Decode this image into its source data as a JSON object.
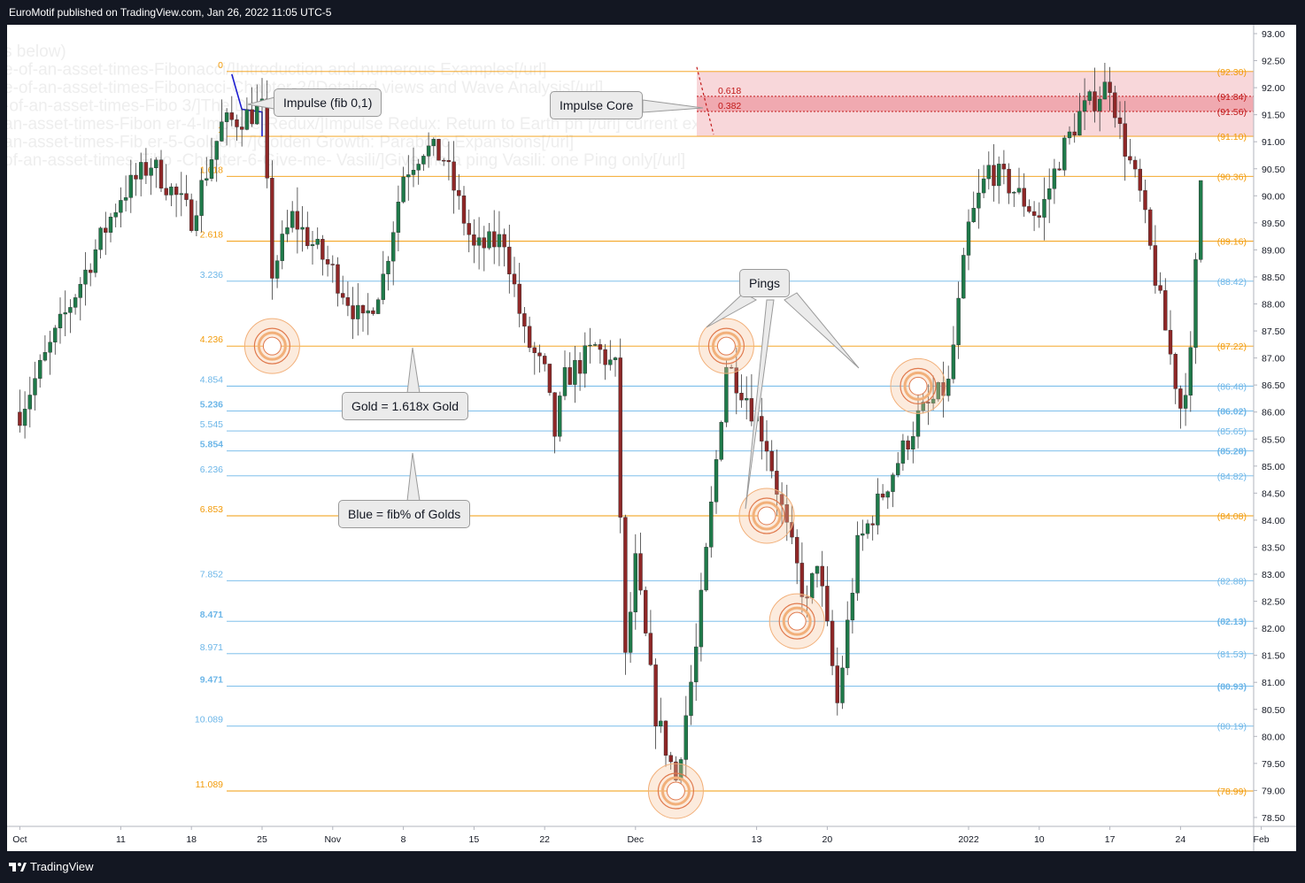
{
  "header": {
    "published": "EuroMotif published on TradingView.com, Jan 26, 2022 11:05 UTC-5"
  },
  "footer": {
    "brand": "TradingView"
  },
  "colors": {
    "gold": "#f29b0a",
    "blue": "#6cb6e8",
    "up": "#1f7a4a",
    "down": "#8f2727",
    "zone": "#f8d7da",
    "zone_dark": "#f0a9b0",
    "red": "#c21a1a"
  },
  "watermark": [
    "s below)",
    "e-of-an-asset-times-Fibonacci/]Introduction and numerous Examples[/url]",
    "e-of-an-asset-times-Fibonacci-Chapter-2/]Detailed views and Wave Analysis[/url]",
    "-of-an-asset-times-Fibo 3/]The Dreaded 9.8",
    "an-asset-times-Fibon er-4-Impulse-Redux/]Impulse Redux: Return to Earth ph [/url] current example",
    "an-asset-times-Fib er-5-Golden-  /]Golden Growth: Parabolic Expansions[/url]",
    "of-an-asset-times-Fibo -Chapter-6-Give-me-  Vasili/]Give me a ping Vasili: one Ping only[/url]"
  ],
  "chart_data": {
    "type": "candlestick",
    "title": "",
    "xlabel": "",
    "ylabel": "",
    "ylim": [
      78.2,
      93.3
    ],
    "y_ticks": [
      "93.00",
      "92.50",
      "92.00",
      "91.50",
      "91.00",
      "90.50",
      "90.00",
      "89.50",
      "89.00",
      "88.50",
      "88.00",
      "87.50",
      "87.00",
      "86.50",
      "86.00",
      "85.50",
      "85.00",
      "84.50",
      "84.00",
      "83.50",
      "83.00",
      "82.50",
      "82.00",
      "81.50",
      "81.00",
      "80.50",
      "80.00",
      "79.50",
      "79.00",
      "78.50"
    ],
    "x_ticks": [
      {
        "label": "Oct",
        "date": "2021-10-01"
      },
      {
        "label": "11",
        "date": "2021-10-11"
      },
      {
        "label": "18",
        "date": "2021-10-18"
      },
      {
        "label": "25",
        "date": "2021-10-25"
      },
      {
        "label": "Nov",
        "date": "2021-11-01"
      },
      {
        "label": "8",
        "date": "2021-11-08"
      },
      {
        "label": "15",
        "date": "2021-11-15"
      },
      {
        "label": "22",
        "date": "2021-11-22"
      },
      {
        "label": "Dec",
        "date": "2021-12-01"
      },
      {
        "label": "13",
        "date": "2021-12-13"
      },
      {
        "label": "20",
        "date": "2021-12-20"
      },
      {
        "label": "2022",
        "date": "2022-01-03"
      },
      {
        "label": "10",
        "date": "2022-01-10"
      },
      {
        "label": "17",
        "date": "2022-01-17"
      },
      {
        "label": "24",
        "date": "2022-01-24"
      },
      {
        "label": "Feb",
        "date": "2022-02-01"
      }
    ],
    "anchors": [
      {
        "date": "2021-10-01",
        "close": 86.0
      },
      {
        "date": "2021-10-07",
        "close": 88.4
      },
      {
        "date": "2021-10-11",
        "close": 90.0
      },
      {
        "date": "2021-10-14",
        "close": 90.6
      },
      {
        "date": "2021-10-18",
        "close": 89.6
      },
      {
        "date": "2021-10-21",
        "close": 91.3
      },
      {
        "date": "2021-10-25",
        "close": 91.6
      },
      {
        "date": "2021-10-26",
        "close": 88.6
      },
      {
        "date": "2021-10-28",
        "close": 89.6
      },
      {
        "date": "2021-11-01",
        "close": 88.6
      },
      {
        "date": "2021-11-04",
        "close": 87.6
      },
      {
        "date": "2021-11-06",
        "close": 88.5
      },
      {
        "date": "2021-11-08",
        "close": 90.4
      },
      {
        "date": "2021-11-10",
        "close": 90.9
      },
      {
        "date": "2021-11-12",
        "close": 90.7
      },
      {
        "date": "2021-11-15",
        "close": 89.0
      },
      {
        "date": "2021-11-18",
        "close": 89.2
      },
      {
        "date": "2021-11-20",
        "close": 87.4
      },
      {
        "date": "2021-11-22",
        "close": 86.7
      },
      {
        "date": "2021-11-23",
        "close": 85.6
      },
      {
        "date": "2021-11-24",
        "close": 86.6
      },
      {
        "date": "2021-11-27",
        "close": 87.2
      },
      {
        "date": "2021-11-29",
        "close": 86.8
      },
      {
        "date": "2021-11-30",
        "close": 81.4
      },
      {
        "date": "2021-12-01",
        "close": 83.2
      },
      {
        "date": "2021-12-03",
        "close": 80.4
      },
      {
        "date": "2021-12-05",
        "close": 79.2
      },
      {
        "date": "2021-12-07",
        "close": 81.6
      },
      {
        "date": "2021-12-09",
        "close": 85.1
      },
      {
        "date": "2021-12-10",
        "close": 86.9
      },
      {
        "date": "2021-12-12",
        "close": 86.3
      },
      {
        "date": "2021-12-14",
        "close": 85.4
      },
      {
        "date": "2021-12-16",
        "close": 83.8
      },
      {
        "date": "2021-12-18",
        "close": 82.4
      },
      {
        "date": "2021-12-19",
        "close": 83.3
      },
      {
        "date": "2021-12-21",
        "close": 80.6
      },
      {
        "date": "2021-12-23",
        "close": 83.5
      },
      {
        "date": "2021-12-27",
        "close": 85.1
      },
      {
        "date": "2021-12-29",
        "close": 85.9
      },
      {
        "date": "2022-01-01",
        "close": 86.5
      },
      {
        "date": "2022-01-03",
        "close": 89.4
      },
      {
        "date": "2022-01-05",
        "close": 90.5
      },
      {
        "date": "2022-01-07",
        "close": 90.2
      },
      {
        "date": "2022-01-10",
        "close": 89.6
      },
      {
        "date": "2022-01-12",
        "close": 90.7
      },
      {
        "date": "2022-01-14",
        "close": 91.5
      },
      {
        "date": "2022-01-17",
        "close": 92.1
      },
      {
        "date": "2022-01-18",
        "close": 91.2
      },
      {
        "date": "2022-01-20",
        "close": 90.0
      },
      {
        "date": "2022-01-22",
        "close": 88.0
      },
      {
        "date": "2022-01-24",
        "close": 86.1
      },
      {
        "date": "2022-01-25",
        "close": 87.0
      },
      {
        "date": "2022-01-26",
        "close": 90.3
      }
    ],
    "fib_levels": [
      {
        "ratio": "0",
        "price": "(92.30)",
        "value": 92.3,
        "color": "gold",
        "bold": false
      },
      {
        "ratio": "1",
        "price": "(91.10)",
        "value": 91.1,
        "color": "gold",
        "bold": false
      },
      {
        "ratio": "1.618",
        "price": "(90.36)",
        "value": 90.36,
        "color": "gold",
        "bold": false
      },
      {
        "ratio": "2.618",
        "price": "(89.16)",
        "value": 89.16,
        "color": "gold",
        "bold": false
      },
      {
        "ratio": "3.236",
        "price": "(88.42)",
        "value": 88.42,
        "color": "blue",
        "bold": false
      },
      {
        "ratio": "4.236",
        "price": "(87.22)",
        "value": 87.22,
        "color": "gold",
        "bold": false
      },
      {
        "ratio": "4.854",
        "price": "(86.48)",
        "value": 86.48,
        "color": "blue",
        "bold": false
      },
      {
        "ratio": "5.236",
        "price": "(86.02)",
        "value": 86.02,
        "color": "blue",
        "bold": true
      },
      {
        "ratio": "5.545",
        "price": "(85.65)",
        "value": 85.65,
        "color": "blue",
        "bold": false
      },
      {
        "ratio": "5.854",
        "price": "(85.28)",
        "value": 85.28,
        "color": "blue",
        "bold": true
      },
      {
        "ratio": "6.236",
        "price": "(84.82)",
        "value": 84.82,
        "color": "blue",
        "bold": false
      },
      {
        "ratio": "6.853",
        "price": "(84.08)",
        "value": 84.08,
        "color": "gold",
        "bold": false
      },
      {
        "ratio": "7.852",
        "price": "(82.88)",
        "value": 82.88,
        "color": "blue",
        "bold": false
      },
      {
        "ratio": "8.471",
        "price": "(82.13)",
        "value": 82.13,
        "color": "blue",
        "bold": true
      },
      {
        "ratio": "8.971",
        "price": "(81.53)",
        "value": 81.53,
        "color": "blue",
        "bold": false
      },
      {
        "ratio": "9.471",
        "price": "(80.93)",
        "value": 80.93,
        "color": "blue",
        "bold": true
      },
      {
        "ratio": "10.089",
        "price": "(80.19)",
        "value": 80.19,
        "color": "blue",
        "bold": false
      },
      {
        "ratio": "11.089",
        "price": "(78.99)",
        "value": 78.99,
        "color": "gold",
        "bold": false
      }
    ],
    "core_zone": {
      "top": 92.3,
      "bottom": 91.1,
      "levels": [
        {
          "label": "0.618",
          "price": "(91.84)",
          "value": 91.84
        },
        {
          "label": "0.382",
          "price": "(91.56)",
          "value": 91.56
        }
      ]
    },
    "pings": [
      {
        "date": "2021-10-26",
        "value": 87.22
      },
      {
        "date": "2021-12-10",
        "value": 87.22
      },
      {
        "date": "2021-12-14",
        "value": 84.08
      },
      {
        "date": "2021-12-17",
        "value": 82.13
      },
      {
        "date": "2021-12-29",
        "value": 86.48
      },
      {
        "date": "2021-12-05",
        "value": 78.99
      }
    ],
    "callouts": [
      {
        "id": "impulse",
        "text": "Impulse (fib 0,1)"
      },
      {
        "id": "core",
        "text": "Impulse Core"
      },
      {
        "id": "pings",
        "text": "Pings"
      },
      {
        "id": "gold",
        "text": "Gold = 1.618x Gold"
      },
      {
        "id": "blue",
        "text": "Blue = fib% of Golds"
      }
    ]
  }
}
